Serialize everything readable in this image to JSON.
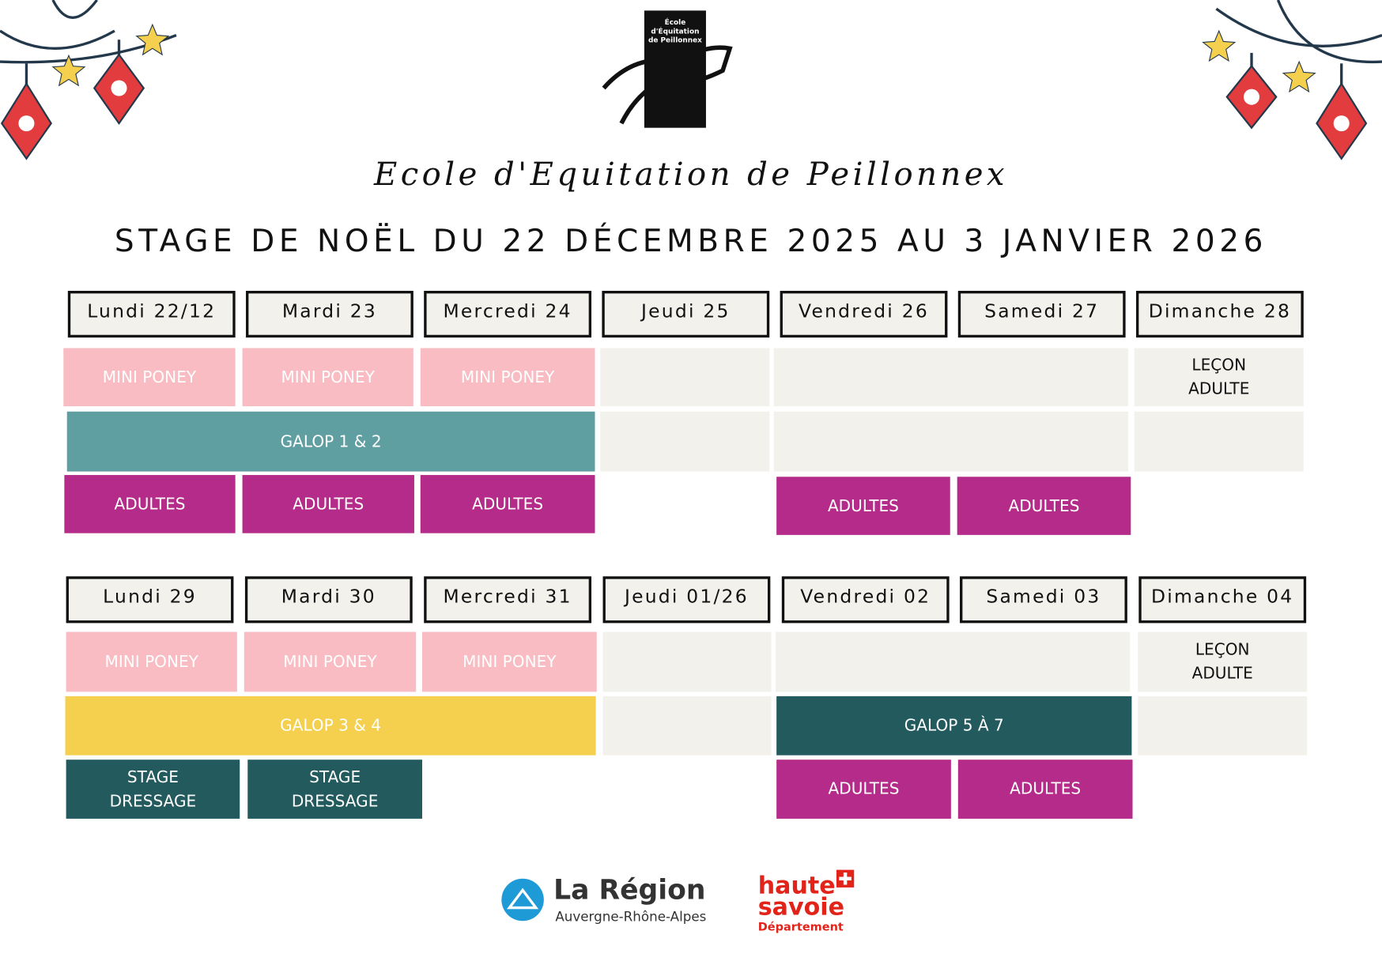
{
  "logo": {
    "text": "École d'Équitation de Peillonnex"
  },
  "header": {
    "title": "Ecole d'Equitation de Peillonnex",
    "heading": "STAGE DE NOËL DU 22 DÉCEMBRE 2025 AU 3 JANVIER 2026"
  },
  "weeks": [
    {
      "days": [
        "Lundi 22/12",
        "Mardi 23",
        "Mercredi 24",
        "Jeudi 25",
        "Vendredi 26",
        "Samedi 27",
        "Dimanche 28"
      ],
      "blocks": [
        "MINI PONEY",
        "MINI PONEY",
        "MINI PONEY",
        "LEÇON ADULTE",
        "GALOP 1 & 2",
        "ADULTES",
        "ADULTES",
        "ADULTES",
        "ADULTES",
        "ADULTES"
      ]
    },
    {
      "days": [
        "Lundi 29",
        "Mardi 30",
        "Mercredi 31",
        "Jeudi 01/26",
        "Vendredi 02",
        "Samedi 03",
        "Dimanche 04"
      ],
      "blocks": [
        "MINI PONEY",
        "MINI PONEY",
        "MINI PONEY",
        "LEÇON ADULTE",
        "GALOP 3 & 4",
        "GALOP 5 À 7",
        "STAGE DRESSAGE",
        "STAGE DRESSAGE",
        "ADULTES",
        "ADULTES"
      ]
    }
  ],
  "footer": {
    "region": {
      "name": "La Région",
      "subtitle": "Auvergne-Rhône-Alpes"
    },
    "department": {
      "line1": "haute",
      "line2": "savoie",
      "line3": "Département"
    }
  }
}
